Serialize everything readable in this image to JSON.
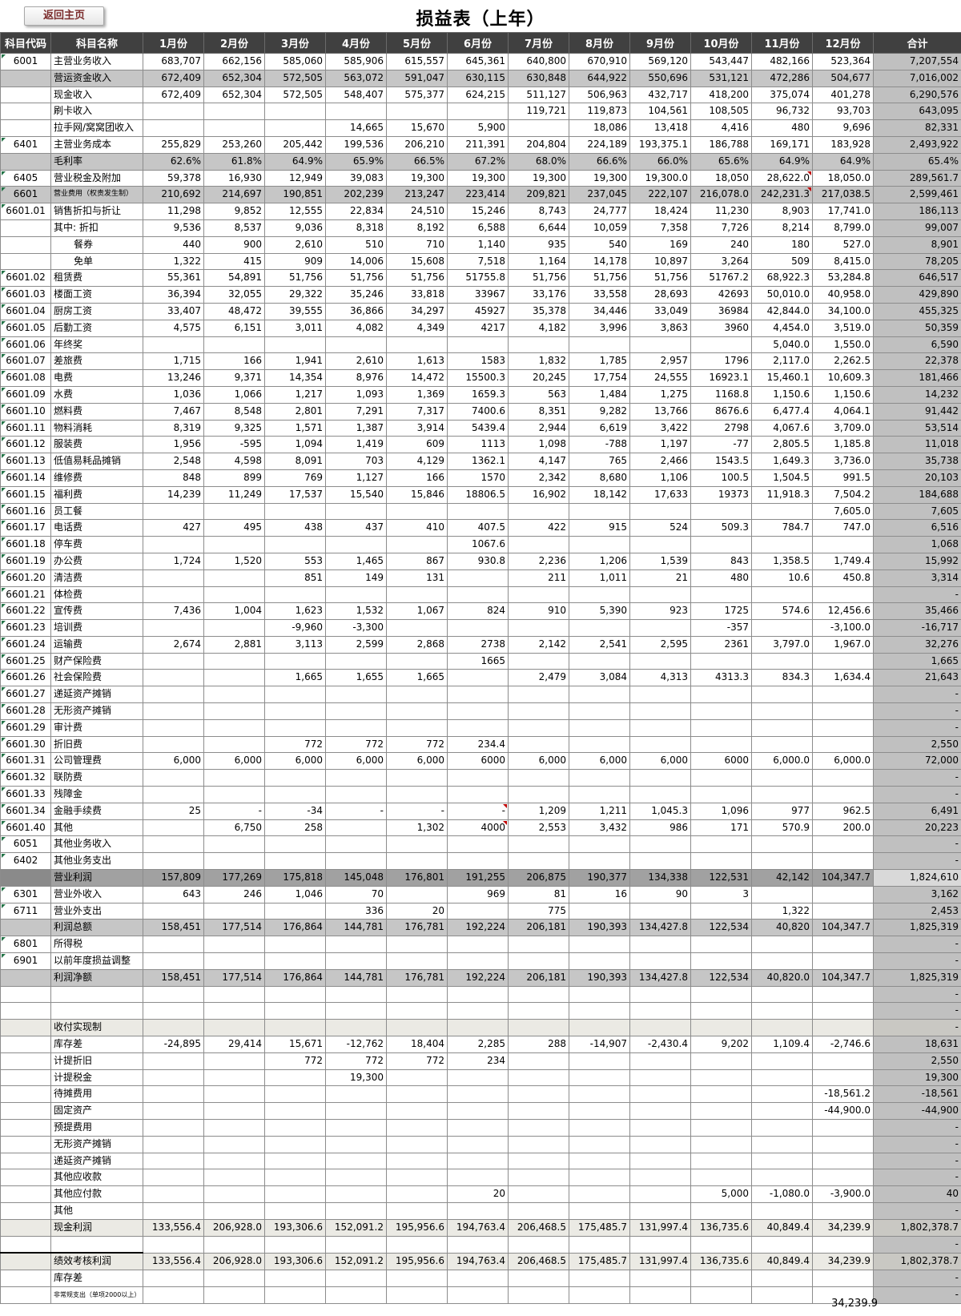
{
  "header": {
    "back_button": "返回主页",
    "title": "损益表（上年）"
  },
  "columns": [
    "科目代码",
    "科目名称",
    "1月份",
    "2月份",
    "3月份",
    "4月份",
    "5月份",
    "6月份",
    "7月份",
    "8月份",
    "9月份",
    "10月份",
    "11月份",
    "12月份",
    "合计"
  ],
  "colors": {
    "header_bg": "#404040",
    "band_row": "#c6c6c6",
    "dark_row": "#a1a1a1",
    "light_row": "#ebeae4",
    "total_col": "#c0c0c0",
    "green_marker": "#217346",
    "red_marker": "#c00000",
    "button_text": "#7b2c2c"
  },
  "rows": [
    {
      "c": "6001",
      "n": "主营业务收入",
      "v": [
        "683,707",
        "662,156",
        "585,060",
        "585,906",
        "615,557",
        "645,361",
        "640,800",
        "670,910",
        "569,120",
        "543,447",
        "482,166",
        "523,364"
      ],
      "t": "7,207,554"
    },
    {
      "c": "",
      "n": "营运资金收入",
      "s": "band",
      "v": [
        "672,409",
        "652,304",
        "572,505",
        "563,072",
        "591,047",
        "630,115",
        "630,848",
        "644,922",
        "550,696",
        "531,121",
        "472,286",
        "504,677"
      ],
      "t": "7,016,002"
    },
    {
      "c": "",
      "n": "现金收入",
      "v": [
        "672,409",
        "652,304",
        "572,505",
        "548,407",
        "575,377",
        "624,215",
        "511,127",
        "506,963",
        "432,717",
        "418,200",
        "375,074",
        "401,278"
      ],
      "t": "6,290,576"
    },
    {
      "c": "",
      "n": "刷卡收入",
      "v": [
        "",
        "",
        "",
        "",
        "",
        "",
        "119,721",
        "119,873",
        "104,561",
        "108,505",
        "96,732",
        "93,703"
      ],
      "t": "643,095"
    },
    {
      "c": "",
      "n": "拉手网/窝窝团收入",
      "v": [
        "",
        "",
        "",
        "14,665",
        "15,670",
        "5,900",
        "",
        "18,086",
        "13,418",
        "4,416",
        "480",
        "9,696"
      ],
      "t": "82,331"
    },
    {
      "c": "6401",
      "n": "主营业务成本",
      "v": [
        "255,829",
        "253,260",
        "205,442",
        "199,536",
        "206,210",
        "211,391",
        "204,804",
        "224,189",
        "193,375.1",
        "186,788",
        "169,171",
        "183,928"
      ],
      "t": "2,493,922"
    },
    {
      "c": "",
      "n": "毛利率",
      "s": "band",
      "v": [
        "62.6%",
        "61.8%",
        "64.9%",
        "65.9%",
        "66.5%",
        "67.2%",
        "68.0%",
        "66.6%",
        "66.0%",
        "65.6%",
        "64.9%",
        "64.9%"
      ],
      "t": "65.4%"
    },
    {
      "c": "6405",
      "n": "营业税金及附加",
      "v": [
        "59,378",
        "16,930",
        "12,949",
        "39,083",
        "19,300",
        "19,300",
        "19,300",
        "19,300",
        "19,300.0",
        "18,050",
        "28,622.0",
        "18,050.0"
      ],
      "t": "289,561.7",
      "red": [
        10
      ]
    },
    {
      "c": "6601",
      "n": "营业费用（权责发生制）",
      "s": "band",
      "f": "s9",
      "v": [
        "210,692",
        "214,697",
        "190,851",
        "202,239",
        "213,247",
        "223,414",
        "209,821",
        "237,045",
        "222,107",
        "216,078.0",
        "242,231.3",
        "217,038.5"
      ],
      "t": "2,599,461",
      "red": [
        10
      ]
    },
    {
      "c": "6601.01",
      "n": "销售折扣与折让",
      "v": [
        "11,298",
        "9,852",
        "12,555",
        "22,834",
        "24,510",
        "15,246",
        "8,743",
        "24,777",
        "18,424",
        "11,230",
        "8,903",
        "17,741.0"
      ],
      "t": "186,113"
    },
    {
      "c": "",
      "n": "其中: 折扣",
      "v": [
        "9,536",
        "8,537",
        "9,036",
        "8,318",
        "8,192",
        "6,588",
        "6,644",
        "10,059",
        "7,358",
        "7,726",
        "8,214",
        "8,799.0"
      ],
      "t": "99,007"
    },
    {
      "c": "",
      "n": "餐券",
      "i": 1,
      "v": [
        "440",
        "900",
        "2,610",
        "510",
        "710",
        "1,140",
        "935",
        "540",
        "169",
        "240",
        "180",
        "527.0"
      ],
      "t": "8,901"
    },
    {
      "c": "",
      "n": "免单",
      "i": 1,
      "v": [
        "1,322",
        "415",
        "909",
        "14,006",
        "15,608",
        "7,518",
        "1,164",
        "14,178",
        "10,897",
        "3,264",
        "509",
        "8,415.0"
      ],
      "t": "78,205"
    },
    {
      "c": "6601.02",
      "n": "租赁费",
      "v": [
        "55,361",
        "54,891",
        "51,756",
        "51,756",
        "51,756",
        "51755.8",
        "51,756",
        "51,756",
        "51,756",
        "51767.2",
        "68,922.3",
        "53,284.8"
      ],
      "t": "646,517"
    },
    {
      "c": "6601.03",
      "n": "楼面工资",
      "v": [
        "36,394",
        "32,055",
        "29,322",
        "35,246",
        "33,818",
        "33967",
        "33,176",
        "33,558",
        "28,693",
        "42693",
        "50,010.0",
        "40,958.0"
      ],
      "t": "429,890"
    },
    {
      "c": "6601.04",
      "n": "厨房工资",
      "v": [
        "33,407",
        "48,472",
        "39,555",
        "36,866",
        "34,297",
        "45927",
        "35,378",
        "34,446",
        "33,049",
        "36984",
        "42,844.0",
        "34,100.0"
      ],
      "t": "455,325"
    },
    {
      "c": "6601.05",
      "n": "后勤工资",
      "v": [
        "4,575",
        "6,151",
        "3,011",
        "4,082",
        "4,349",
        "4217",
        "4,182",
        "3,996",
        "3,863",
        "3960",
        "4,454.0",
        "3,519.0"
      ],
      "t": "50,359"
    },
    {
      "c": "6601.06",
      "n": "年终奖",
      "v": [
        "",
        "",
        "",
        "",
        "",
        "",
        "",
        "",
        "",
        "",
        "5,040.0",
        "1,550.0"
      ],
      "t": "6,590"
    },
    {
      "c": "6601.07",
      "n": "差旅费",
      "v": [
        "1,715",
        "166",
        "1,941",
        "2,610",
        "1,613",
        "1583",
        "1,832",
        "1,785",
        "2,957",
        "1796",
        "2,117.0",
        "2,262.5"
      ],
      "t": "22,378"
    },
    {
      "c": "6601.08",
      "n": "电费",
      "v": [
        "13,246",
        "9,371",
        "14,354",
        "8,976",
        "14,472",
        "15500.3",
        "20,245",
        "17,754",
        "24,555",
        "16923.1",
        "15,460.1",
        "10,609.3"
      ],
      "t": "181,466"
    },
    {
      "c": "6601.09",
      "n": "水费",
      "v": [
        "1,036",
        "1,066",
        "1,217",
        "1,093",
        "1,369",
        "1659.3",
        "563",
        "1,484",
        "1,275",
        "1168.8",
        "1,150.6",
        "1,150.6"
      ],
      "t": "14,232"
    },
    {
      "c": "6601.10",
      "n": "燃料费",
      "v": [
        "7,467",
        "8,548",
        "2,801",
        "7,291",
        "7,317",
        "7400.6",
        "8,351",
        "9,282",
        "13,766",
        "8676.6",
        "6,477.4",
        "4,064.1"
      ],
      "t": "91,442"
    },
    {
      "c": "6601.11",
      "n": "物料消耗",
      "v": [
        "8,319",
        "9,325",
        "1,571",
        "1,387",
        "3,914",
        "5439.4",
        "2,944",
        "6,619",
        "3,422",
        "2798",
        "4,067.6",
        "3,709.0"
      ],
      "t": "53,514"
    },
    {
      "c": "6601.12",
      "n": "服装费",
      "v": [
        "1,956",
        "-595",
        "1,094",
        "1,419",
        "609",
        "1113",
        "1,098",
        "-788",
        "1,197",
        "-77",
        "2,805.5",
        "1,185.8"
      ],
      "t": "11,018"
    },
    {
      "c": "6601.13",
      "n": "低值易耗品摊销",
      "v": [
        "2,548",
        "4,598",
        "8,091",
        "703",
        "4,129",
        "1362.1",
        "4,147",
        "765",
        "2,466",
        "1543.5",
        "1,649.3",
        "3,736.0"
      ],
      "t": "35,738"
    },
    {
      "c": "6601.14",
      "n": "维修费",
      "v": [
        "848",
        "899",
        "769",
        "1,127",
        "166",
        "1570",
        "2,342",
        "8,680",
        "1,106",
        "100.5",
        "1,504.5",
        "991.5"
      ],
      "t": "20,103"
    },
    {
      "c": "6601.15",
      "n": "福利费",
      "v": [
        "14,239",
        "11,249",
        "17,537",
        "15,540",
        "15,846",
        "18806.5",
        "16,902",
        "18,142",
        "17,633",
        "19373",
        "11,918.3",
        "7,504.2"
      ],
      "t": "184,688"
    },
    {
      "c": "6601.16",
      "n": "员工餐",
      "v": [
        "",
        "",
        "",
        "",
        "",
        "",
        "",
        "",
        "",
        "",
        "",
        "7,605.0"
      ],
      "t": "7,605"
    },
    {
      "c": "6601.17",
      "n": "电话费",
      "v": [
        "427",
        "495",
        "438",
        "437",
        "410",
        "407.5",
        "422",
        "915",
        "524",
        "509.3",
        "784.7",
        "747.0"
      ],
      "t": "6,516"
    },
    {
      "c": "6601.18",
      "n": "停车费",
      "v": [
        "",
        "",
        "",
        "",
        "",
        "1067.6",
        "",
        "",
        "",
        "",
        "",
        ""
      ],
      "t": "1,068"
    },
    {
      "c": "6601.19",
      "n": "办公费",
      "v": [
        "1,724",
        "1,520",
        "553",
        "1,465",
        "867",
        "930.8",
        "2,236",
        "1,206",
        "1,539",
        "843",
        "1,358.5",
        "1,749.4"
      ],
      "t": "15,992"
    },
    {
      "c": "6601.20",
      "n": "清洁费",
      "v": [
        "",
        "",
        "851",
        "149",
        "131",
        "",
        "211",
        "1,011",
        "21",
        "480",
        "10.6",
        "450.8"
      ],
      "t": "3,314"
    },
    {
      "c": "6601.21",
      "n": "体检费",
      "t": "-"
    },
    {
      "c": "6601.22",
      "n": "宣传费",
      "v": [
        "7,436",
        "1,004",
        "1,623",
        "1,532",
        "1,067",
        "824",
        "910",
        "5,390",
        "923",
        "1725",
        "574.6",
        "12,456.6"
      ],
      "t": "35,466"
    },
    {
      "c": "6601.23",
      "n": "培训费",
      "v": [
        "",
        "",
        "-9,960",
        "-3,300",
        "",
        "",
        "",
        "",
        "",
        "-357",
        "",
        "-3,100.0"
      ],
      "t": "-16,717"
    },
    {
      "c": "6601.24",
      "n": "运输费",
      "v": [
        "2,674",
        "2,881",
        "3,113",
        "2,599",
        "2,868",
        "2738",
        "2,142",
        "2,541",
        "2,595",
        "2361",
        "3,797.0",
        "1,967.0"
      ],
      "t": "32,276"
    },
    {
      "c": "6601.25",
      "n": "财产保险费",
      "v": [
        "",
        "",
        "",
        "",
        "",
        "1665",
        "",
        "",
        "",
        "",
        "",
        ""
      ],
      "t": "1,665"
    },
    {
      "c": "6601.26",
      "n": "社会保险费",
      "v": [
        "",
        "",
        "1,665",
        "1,655",
        "1,665",
        "",
        "2,479",
        "3,084",
        "4,313",
        "4313.3",
        "834.3",
        "1,634.4"
      ],
      "t": "21,643"
    },
    {
      "c": "6601.27",
      "n": "递延资产摊销",
      "t": "-"
    },
    {
      "c": "6601.28",
      "n": "无形资产摊销",
      "t": "-"
    },
    {
      "c": "6601.29",
      "n": "审计费",
      "t": "-"
    },
    {
      "c": "6601.30",
      "n": "折旧费",
      "v": [
        "",
        "",
        "772",
        "772",
        "772",
        "234.4",
        "",
        "",
        "",
        "",
        "",
        ""
      ],
      "t": "2,550"
    },
    {
      "c": "6601.31",
      "n": "公司管理费",
      "v": [
        "6,000",
        "6,000",
        "6,000",
        "6,000",
        "6,000",
        "6000",
        "6,000",
        "6,000",
        "6,000",
        "6000",
        "6,000.0",
        "6,000.0"
      ],
      "t": "72,000"
    },
    {
      "c": "6601.32",
      "n": "联防费",
      "t": "-"
    },
    {
      "c": "6601.33",
      "n": "残障金",
      "t": "-"
    },
    {
      "c": "6601.34",
      "n": "金融手续费",
      "v": [
        "25",
        "-",
        "-34",
        "-",
        "-",
        "-",
        "1,209",
        "1,211",
        "1,045.3",
        "1,096",
        "977",
        "962.5"
      ],
      "t": "6,491",
      "red": [
        5
      ]
    },
    {
      "c": "6601.40",
      "n": "其他",
      "v": [
        "",
        "6,750",
        "258",
        "",
        "1,302",
        "4000",
        "2,553",
        "3,432",
        "986",
        "171",
        "570.9",
        "200.0"
      ],
      "t": "20,223",
      "red": [
        5
      ]
    },
    {
      "c": "6051",
      "n": "其他业务收入",
      "t": "-"
    },
    {
      "c": "6402",
      "n": "其他业务支出",
      "t": "-"
    },
    {
      "c": "",
      "n": "营业利润",
      "s": "dark",
      "v": [
        "157,809",
        "177,269",
        "175,818",
        "145,048",
        "176,801",
        "191,255",
        "206,875",
        "190,377",
        "134,338",
        "122,531",
        "42,142",
        "104,347.7"
      ],
      "t": "1,824,610"
    },
    {
      "c": "6301",
      "n": "营业外收入",
      "v": [
        "643",
        "246",
        "1,046",
        "70",
        "",
        "969",
        "81",
        "16",
        "90",
        "3",
        "",
        ""
      ],
      "t": "3,162"
    },
    {
      "c": "6711",
      "n": "营业外支出",
      "v": [
        "",
        "",
        "",
        "336",
        "20",
        "",
        "775",
        "",
        "",
        "",
        "1,322",
        ""
      ],
      "t": "2,453"
    },
    {
      "c": "",
      "n": "利润总额",
      "s": "band",
      "v": [
        "158,451",
        "177,514",
        "176,864",
        "144,781",
        "176,781",
        "192,224",
        "206,181",
        "190,393",
        "134,427.8",
        "122,534",
        "40,820",
        "104,347.7"
      ],
      "t": "1,825,319"
    },
    {
      "c": "6801",
      "n": "所得税",
      "t": "-"
    },
    {
      "c": "6901",
      "n": "以前年度损益调整",
      "t": "-"
    },
    {
      "c": "",
      "n": "利润净额",
      "s": "band",
      "v": [
        "158,451",
        "177,514",
        "176,864",
        "144,781",
        "176,781",
        "192,224",
        "206,181",
        "190,393",
        "134,427.8",
        "122,534",
        "40,820.0",
        "104,347.7"
      ],
      "t": "1,825,319"
    },
    {
      "c": "",
      "n": "",
      "t": "-"
    },
    {
      "c": "",
      "n": "",
      "t": "-"
    },
    {
      "c": "",
      "n": "收付实现制",
      "s": "light",
      "t": "-"
    },
    {
      "c": "",
      "n": "库存差",
      "v": [
        "-24,895",
        "29,414",
        "15,671",
        "-12,762",
        "18,404",
        "2,285",
        "288",
        "-14,907",
        "-2,430.4",
        "9,202",
        "1,109.4",
        "-2,746.6"
      ],
      "t": "18,631"
    },
    {
      "c": "",
      "n": "计提折旧",
      "v": [
        "",
        "",
        "772",
        "772",
        "772",
        "234",
        "",
        "",
        "",
        "",
        "",
        ""
      ],
      "t": "2,550"
    },
    {
      "c": "",
      "n": "计提税金",
      "v": [
        "",
        "",
        "",
        "19,300",
        "",
        "",
        "",
        "",
        "",
        "",
        "",
        ""
      ],
      "t": "19,300"
    },
    {
      "c": "",
      "n": "待摊费用",
      "v": [
        "",
        "",
        "",
        "",
        "",
        "",
        "",
        "",
        "",
        "",
        "",
        "-18,561.2"
      ],
      "t": "-18,561"
    },
    {
      "c": "",
      "n": "固定资产",
      "v": [
        "",
        "",
        "",
        "",
        "",
        "",
        "",
        "",
        "",
        "",
        "",
        "-44,900.0"
      ],
      "t": "-44,900"
    },
    {
      "c": "",
      "n": "预提费用",
      "t": "-"
    },
    {
      "c": "",
      "n": "无形资产摊销",
      "t": "-"
    },
    {
      "c": "",
      "n": "递延资产摊销",
      "t": "-"
    },
    {
      "c": "",
      "n": "其他应收款",
      "t": "-"
    },
    {
      "c": "",
      "n": "其他应付款",
      "v": [
        "",
        "",
        "",
        "",
        "",
        "20",
        "",
        "",
        "",
        "5,000",
        "-1,080.0",
        "-3,900.0"
      ],
      "t": "40"
    },
    {
      "c": "",
      "n": "其他",
      "t": "-"
    },
    {
      "c": "",
      "n": "现金利润",
      "s": "light",
      "v": [
        "133,556.4",
        "206,928.0",
        "193,306.6",
        "152,091.2",
        "195,956.6",
        "194,763.4",
        "206,468.5",
        "175,485.7",
        "131,997.4",
        "136,735.6",
        "40,849.4",
        "34,239.9"
      ],
      "t": "1,802,378.7"
    },
    {
      "c": "",
      "n": "",
      "t": "-"
    },
    {
      "c": "",
      "n": "绩效考核利润",
      "s": "light",
      "tl": 1,
      "v": [
        "133,556.4",
        "206,928.0",
        "193,306.6",
        "152,091.2",
        "195,956.6",
        "194,763.4",
        "206,468.5",
        "175,485.7",
        "131,997.4",
        "136,735.6",
        "40,849.4",
        "34,239.9"
      ],
      "t": "1,802,378.7"
    },
    {
      "c": "",
      "n": "库存差",
      "t": "-"
    },
    {
      "c": "",
      "n": "非常规支出（单项2000以上）",
      "f": "s7",
      "t": "-"
    }
  ],
  "footer": {
    "value": "34,239.9"
  }
}
